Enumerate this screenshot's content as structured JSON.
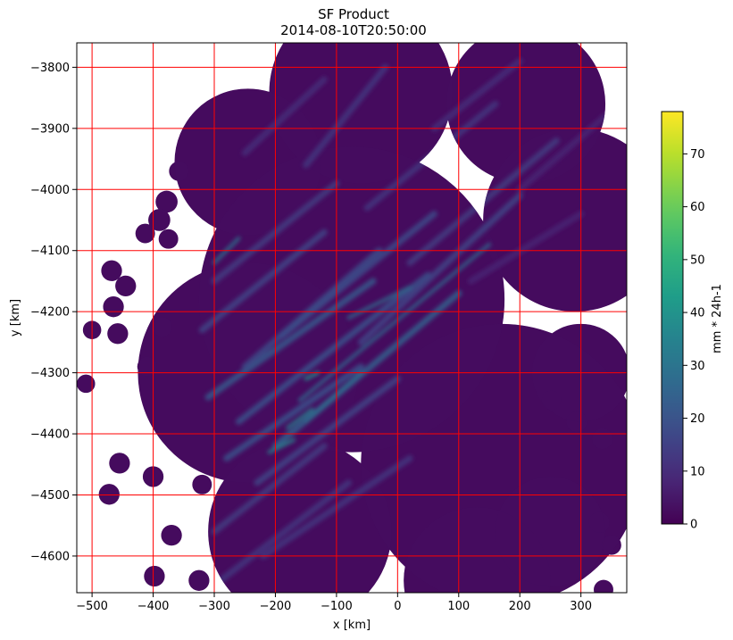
{
  "chart_data": {
    "type": "heatmap",
    "title": "SF Product",
    "subtitle": "2014-08-10T20:50:00",
    "xlabel": "x [km]",
    "ylabel": "y [km]",
    "xlim": [
      -525,
      375
    ],
    "ylim": [
      -4660,
      -3760
    ],
    "x_ticks": [
      -500,
      -400,
      -300,
      -200,
      -100,
      0,
      100,
      200,
      300
    ],
    "x_tick_labels": [
      "−500",
      "−400",
      "−300",
      "−200",
      "−100",
      "0",
      "100",
      "200",
      "300"
    ],
    "y_ticks": [
      -3800,
      -3900,
      -4000,
      -4100,
      -4200,
      -4300,
      -4400,
      -4500,
      -4600
    ],
    "y_tick_labels": [
      "−3800",
      "−3900",
      "−4000",
      "−4100",
      "−4200",
      "−4300",
      "−4400",
      "−4500",
      "−4600"
    ],
    "grid": true,
    "grid_color": "#ff0000",
    "colormap": "viridis",
    "colorbar": {
      "label": "mm * 24h-1",
      "min": 0,
      "max": 78,
      "ticks": [
        0,
        10,
        20,
        30,
        40,
        50,
        60,
        70
      ],
      "tick_labels": [
        "0",
        "10",
        "20",
        "30",
        "40",
        "50",
        "60",
        "70"
      ]
    },
    "coverage_discs": [
      {
        "x": -245,
        "y": -3955,
        "r": 120
      },
      {
        "x": -60,
        "y": -3840,
        "r": 150
      },
      {
        "x": 210,
        "y": -3860,
        "r": 130
      },
      {
        "x": 290,
        "y": -4050,
        "r": 150
      },
      {
        "x": 300,
        "y": -4300,
        "r": 80
      },
      {
        "x": -75,
        "y": -4180,
        "r": 250
      },
      {
        "x": -245,
        "y": -4300,
        "r": 180
      },
      {
        "x": -160,
        "y": -4560,
        "r": 150
      },
      {
        "x": 170,
        "y": -4450,
        "r": 230
      },
      {
        "x": 130,
        "y": -4640,
        "r": 120
      },
      {
        "x": 250,
        "y": -4560,
        "r": 90
      },
      {
        "x": -500,
        "y": -4230,
        "r": 15
      },
      {
        "x": -510,
        "y": -4318,
        "r": 15
      },
      {
        "x": -468,
        "y": -4133,
        "r": 17
      },
      {
        "x": -445,
        "y": -4158,
        "r": 17
      },
      {
        "x": -465,
        "y": -4192,
        "r": 17
      },
      {
        "x": -458,
        "y": -4236,
        "r": 17
      },
      {
        "x": -413,
        "y": -4072,
        "r": 16
      },
      {
        "x": -390,
        "y": -4050,
        "r": 18
      },
      {
        "x": -378,
        "y": -4020,
        "r": 18
      },
      {
        "x": -375,
        "y": -4081,
        "r": 16
      },
      {
        "x": -358,
        "y": -3970,
        "r": 16
      },
      {
        "x": -455,
        "y": -4448,
        "r": 17
      },
      {
        "x": -472,
        "y": -4499,
        "r": 17
      },
      {
        "x": -400,
        "y": -4470,
        "r": 17
      },
      {
        "x": -370,
        "y": -4566,
        "r": 17
      },
      {
        "x": -398,
        "y": -4633,
        "r": 17
      },
      {
        "x": -325,
        "y": -4640,
        "r": 17
      },
      {
        "x": -320,
        "y": -4483,
        "r": 16
      },
      {
        "x": -385,
        "y": -4225,
        "r": 16
      },
      {
        "x": -410,
        "y": -4290,
        "r": 16
      },
      {
        "x": 252,
        "y": -4345,
        "r": 16
      },
      {
        "x": 293,
        "y": -4380,
        "r": 17
      },
      {
        "x": 335,
        "y": -4408,
        "r": 17
      },
      {
        "x": 330,
        "y": -4545,
        "r": 17
      },
      {
        "x": 350,
        "y": -4582,
        "r": 16
      },
      {
        "x": 337,
        "y": -4655,
        "r": 16
      }
    ],
    "streaks": [
      {
        "x1": -200,
        "y1": -4420,
        "x2": 100,
        "y2": -4170,
        "value": 24
      },
      {
        "x1": -260,
        "y1": -4380,
        "x2": 50,
        "y2": -4140,
        "value": 20
      },
      {
        "x1": -310,
        "y1": -4340,
        "x2": -40,
        "y2": -4150,
        "value": 22
      },
      {
        "x1": -160,
        "y1": -4345,
        "x2": 150,
        "y2": -4090,
        "value": 26
      },
      {
        "x1": -250,
        "y1": -4290,
        "x2": -30,
        "y2": -4100,
        "value": 18
      },
      {
        "x1": -320,
        "y1": -4230,
        "x2": -120,
        "y2": -4070,
        "value": 16
      },
      {
        "x1": -300,
        "y1": -4150,
        "x2": -100,
        "y2": -3990,
        "value": 14
      },
      {
        "x1": -190,
        "y1": -4240,
        "x2": 60,
        "y2": -4040,
        "value": 18
      },
      {
        "x1": -280,
        "y1": -4440,
        "x2": -60,
        "y2": -4290,
        "value": 20
      },
      {
        "x1": -230,
        "y1": -4480,
        "x2": 0,
        "y2": -4310,
        "value": 16
      },
      {
        "x1": -60,
        "y1": -4250,
        "x2": 200,
        "y2": -4010,
        "value": 16
      },
      {
        "x1": 20,
        "y1": -4120,
        "x2": 260,
        "y2": -3920,
        "value": 14
      },
      {
        "x1": -50,
        "y1": -4030,
        "x2": 160,
        "y2": -3860,
        "value": 12
      },
      {
        "x1": -150,
        "y1": -3960,
        "x2": -20,
        "y2": -3800,
        "value": 12
      },
      {
        "x1": -250,
        "y1": -3940,
        "x2": -120,
        "y2": -3820,
        "value": 10
      },
      {
        "x1": -300,
        "y1": -4560,
        "x2": -120,
        "y2": -4420,
        "value": 14
      },
      {
        "x1": -290,
        "y1": -4640,
        "x2": -80,
        "y2": -4480,
        "value": 12
      },
      {
        "x1": -220,
        "y1": -4600,
        "x2": 20,
        "y2": -4440,
        "value": 12
      },
      {
        "x1": -150,
        "y1": -4380,
        "x2": -60,
        "y2": -4300,
        "value": 28
      },
      {
        "x1": -300,
        "y1": -4120,
        "x2": -260,
        "y2": -4080,
        "value": 30
      },
      {
        "x1": -180,
        "y1": -4390,
        "x2": -140,
        "y2": -4360,
        "value": 34
      },
      {
        "x1": -80,
        "y1": -4210,
        "x2": 20,
        "y2": -4160,
        "value": 28
      },
      {
        "x1": -210,
        "y1": -4430,
        "x2": -170,
        "y2": -4410,
        "value": 36
      },
      {
        "x1": -150,
        "y1": -4310,
        "x2": -130,
        "y2": -4300,
        "value": 40
      },
      {
        "x1": 200,
        "y1": -4000,
        "x2": 340,
        "y2": -3880,
        "value": 8
      },
      {
        "x1": 120,
        "y1": -4150,
        "x2": 300,
        "y2": -4040,
        "value": 8
      },
      {
        "x1": 60,
        "y1": -3900,
        "x2": 200,
        "y2": -3790,
        "value": 10
      }
    ]
  }
}
